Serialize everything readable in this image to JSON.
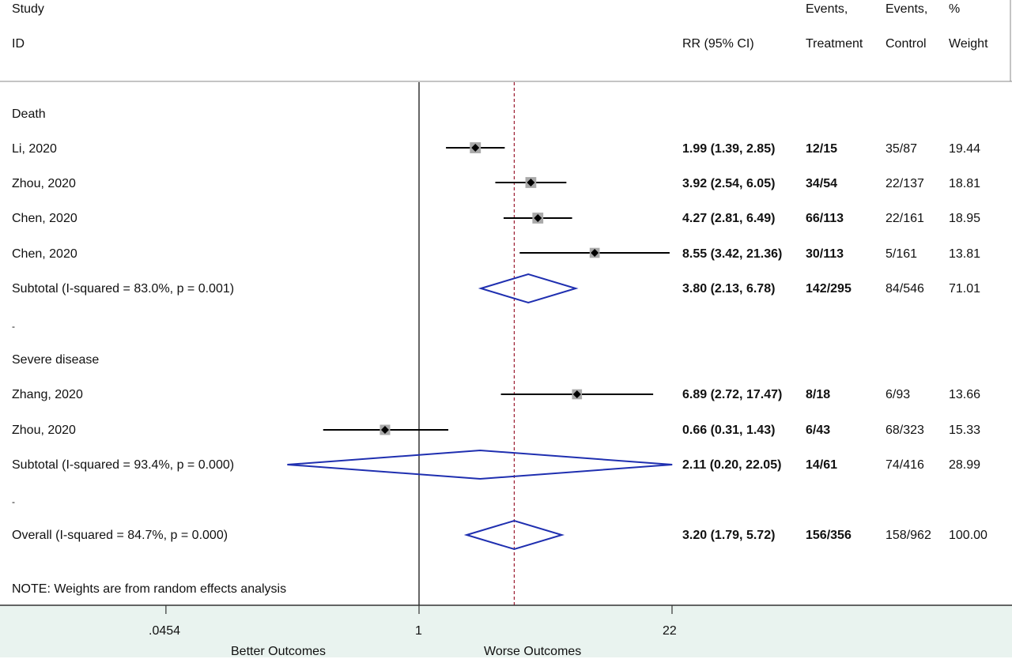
{
  "header": {
    "study": "Study",
    "id": "ID",
    "rr": "RR (95% CI)",
    "events_t_1": "Events,",
    "events_t_2": "Treatment",
    "events_c_1": "Events,",
    "events_c_2": "Control",
    "weight_1": "%",
    "weight_2": "Weight"
  },
  "groups": [
    {
      "label": "Death"
    },
    {
      "label": "Severe disease"
    }
  ],
  "rows": [
    {
      "type": "study",
      "label": "Li, 2020",
      "rr": 1.99,
      "lo": 1.39,
      "hi": 2.85,
      "rr_text": "1.99 (1.39, 2.85)",
      "events_t": "12/15",
      "events_c": "35/87",
      "weight": "19.44"
    },
    {
      "type": "study",
      "label": "Zhou, 2020",
      "rr": 3.92,
      "lo": 2.54,
      "hi": 6.05,
      "rr_text": "3.92 (2.54, 6.05)",
      "events_t": "34/54",
      "events_c": "22/137",
      "weight": "18.81"
    },
    {
      "type": "study",
      "label": "Chen, 2020",
      "rr": 4.27,
      "lo": 2.81,
      "hi": 6.49,
      "rr_text": "4.27 (2.81, 6.49)",
      "events_t": "66/113",
      "events_c": "22/161",
      "weight": "18.95"
    },
    {
      "type": "study",
      "label": "Chen, 2020",
      "rr": 8.55,
      "lo": 3.42,
      "hi": 21.36,
      "rr_text": "8.55 (3.42, 21.36)",
      "events_t": "30/113",
      "events_c": "5/161",
      "weight": "13.81"
    },
    {
      "type": "subtotal",
      "label": "Subtotal  (I-squared = 83.0%, p = 0.001)",
      "rr": 3.8,
      "lo": 2.13,
      "hi": 6.78,
      "rr_text": "3.80 (2.13, 6.78)",
      "events_t": "142/295",
      "events_c": "84/546",
      "weight": "71.01"
    },
    {
      "type": "study",
      "label": "Zhang, 2020",
      "rr": 6.89,
      "lo": 2.72,
      "hi": 17.47,
      "rr_text": "6.89 (2.72, 17.47)",
      "events_t": "8/18",
      "events_c": "6/93",
      "weight": "13.66"
    },
    {
      "type": "study",
      "label": "Zhou, 2020",
      "rr": 0.66,
      "lo": 0.31,
      "hi": 1.43,
      "rr_text": "0.66 (0.31, 1.43)",
      "events_t": "6/43",
      "events_c": "68/323",
      "weight": "15.33"
    },
    {
      "type": "subtotal",
      "label": "Subtotal  (I-squared = 93.4%, p = 0.000)",
      "rr": 2.11,
      "lo": 0.2,
      "hi": 22.05,
      "rr_text": "2.11 (0.20, 22.05)",
      "events_t": "14/61",
      "events_c": "74/416",
      "weight": "28.99"
    },
    {
      "type": "overall",
      "label": "Overall  (I-squared = 84.7%, p = 0.000)",
      "rr": 3.2,
      "lo": 1.79,
      "hi": 5.72,
      "rr_text": "3.20 (1.79, 5.72)",
      "events_t": "156/356",
      "events_c": "158/962",
      "weight": "100.00"
    }
  ],
  "separators": [
    "-",
    "-"
  ],
  "note": "NOTE: Weights are from random effects analysis",
  "axis": {
    "ticks": [
      {
        "value": 0.0454,
        "label": ".0454"
      },
      {
        "value": 1,
        "label": "1"
      },
      {
        "value": 22,
        "label": "22"
      }
    ],
    "left_caption": "Better Outcomes",
    "right_caption": "Worse Outcomes"
  },
  "chart_data": {
    "type": "forest",
    "scale": "log",
    "xlim": [
      0.0454,
      22
    ],
    "null_line": 1,
    "overall_line": 3.2,
    "measure": "RR (95% CI)",
    "studies": [
      {
        "label": "Li, 2020",
        "group": "Death",
        "rr": 1.99,
        "ci": [
          1.39,
          2.85
        ],
        "weight": 19.44
      },
      {
        "label": "Zhou, 2020",
        "group": "Death",
        "rr": 3.92,
        "ci": [
          2.54,
          6.05
        ],
        "weight": 18.81
      },
      {
        "label": "Chen, 2020",
        "group": "Death",
        "rr": 4.27,
        "ci": [
          2.81,
          6.49
        ],
        "weight": 18.95
      },
      {
        "label": "Chen, 2020",
        "group": "Death",
        "rr": 8.55,
        "ci": [
          3.42,
          21.36
        ],
        "weight": 13.81
      },
      {
        "label": "Zhang, 2020",
        "group": "Severe disease",
        "rr": 6.89,
        "ci": [
          2.72,
          17.47
        ],
        "weight": 13.66
      },
      {
        "label": "Zhou, 2020",
        "group": "Severe disease",
        "rr": 0.66,
        "ci": [
          0.31,
          1.43
        ],
        "weight": 15.33
      }
    ],
    "subtotals": [
      {
        "group": "Death",
        "rr": 3.8,
        "ci": [
          2.13,
          6.78
        ]
      },
      {
        "group": "Severe disease",
        "rr": 2.11,
        "ci": [
          0.2,
          22.05
        ]
      }
    ],
    "overall": {
      "rr": 3.2,
      "ci": [
        1.79,
        5.72
      ]
    },
    "colors": {
      "marker": "#000000",
      "weight_box": "#a9a9a9",
      "diamond": "#1f2fb0",
      "overall_line": "#9b1b30",
      "axis": "#333333"
    }
  }
}
